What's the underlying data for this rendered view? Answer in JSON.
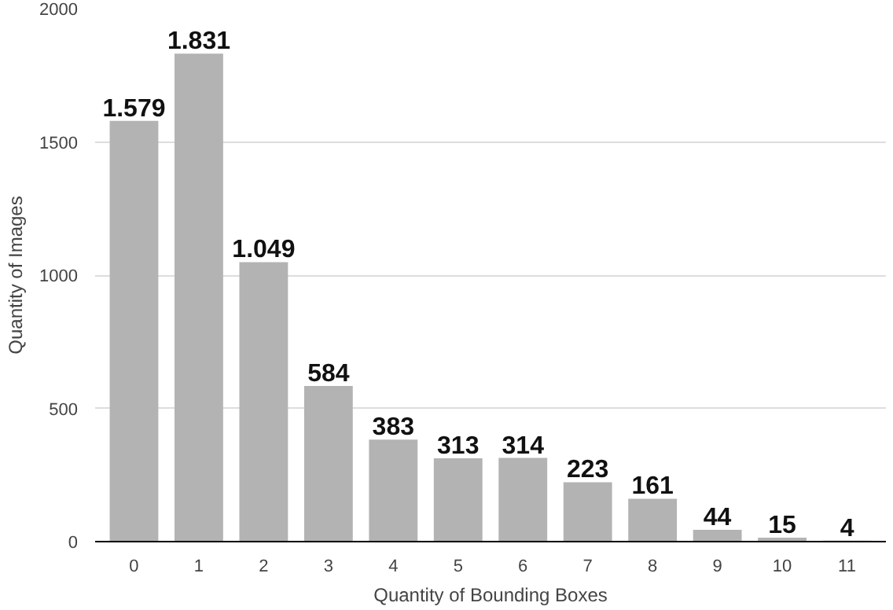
{
  "chart_data": {
    "type": "bar",
    "xlabel": "Quantity of Bounding Boxes",
    "ylabel": "Quantity of Images",
    "categories": [
      "0",
      "1",
      "2",
      "3",
      "4",
      "5",
      "6",
      "7",
      "8",
      "9",
      "10",
      "11"
    ],
    "values": [
      1579,
      1831,
      1049,
      584,
      383,
      313,
      314,
      223,
      161,
      44,
      15,
      4
    ],
    "value_labels": [
      "1.579",
      "1.831",
      "1.049",
      "584",
      "383",
      "313",
      "314",
      "223",
      "161",
      "44",
      "15",
      "4"
    ],
    "color": "#b3b3b3",
    "ylim": [
      0,
      2000
    ],
    "yticks": [
      0,
      500,
      1000,
      1500,
      2000
    ],
    "grid": "y"
  }
}
